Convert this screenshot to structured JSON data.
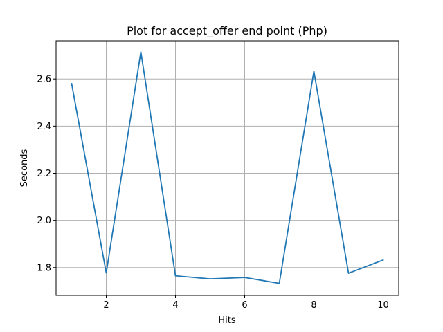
{
  "chart_data": {
    "type": "line",
    "title": "Plot for accept_offer end point (Php)",
    "xlabel": "Hits",
    "ylabel": "Seconds",
    "grid": true,
    "line_color": "#1f77b4",
    "xlim": [
      0.55,
      10.45
    ],
    "ylim": [
      1.682,
      2.762
    ],
    "x_ticks": [
      2,
      4,
      6,
      8,
      10
    ],
    "y_ticks": [
      1.8,
      2.0,
      2.2,
      2.4,
      2.6
    ],
    "x_tick_labels": [
      "2",
      "4",
      "6",
      "8",
      "10"
    ],
    "y_tick_labels": [
      "1.8",
      "2.0",
      "2.2",
      "2.4",
      "2.6"
    ],
    "series": [
      {
        "x": [
          1,
          2,
          3,
          4,
          5,
          6,
          7,
          8,
          9,
          10
        ],
        "values": [
          2.58,
          1.777,
          2.715,
          1.765,
          1.752,
          1.758,
          1.733,
          2.633,
          1.776,
          1.832
        ]
      }
    ]
  }
}
